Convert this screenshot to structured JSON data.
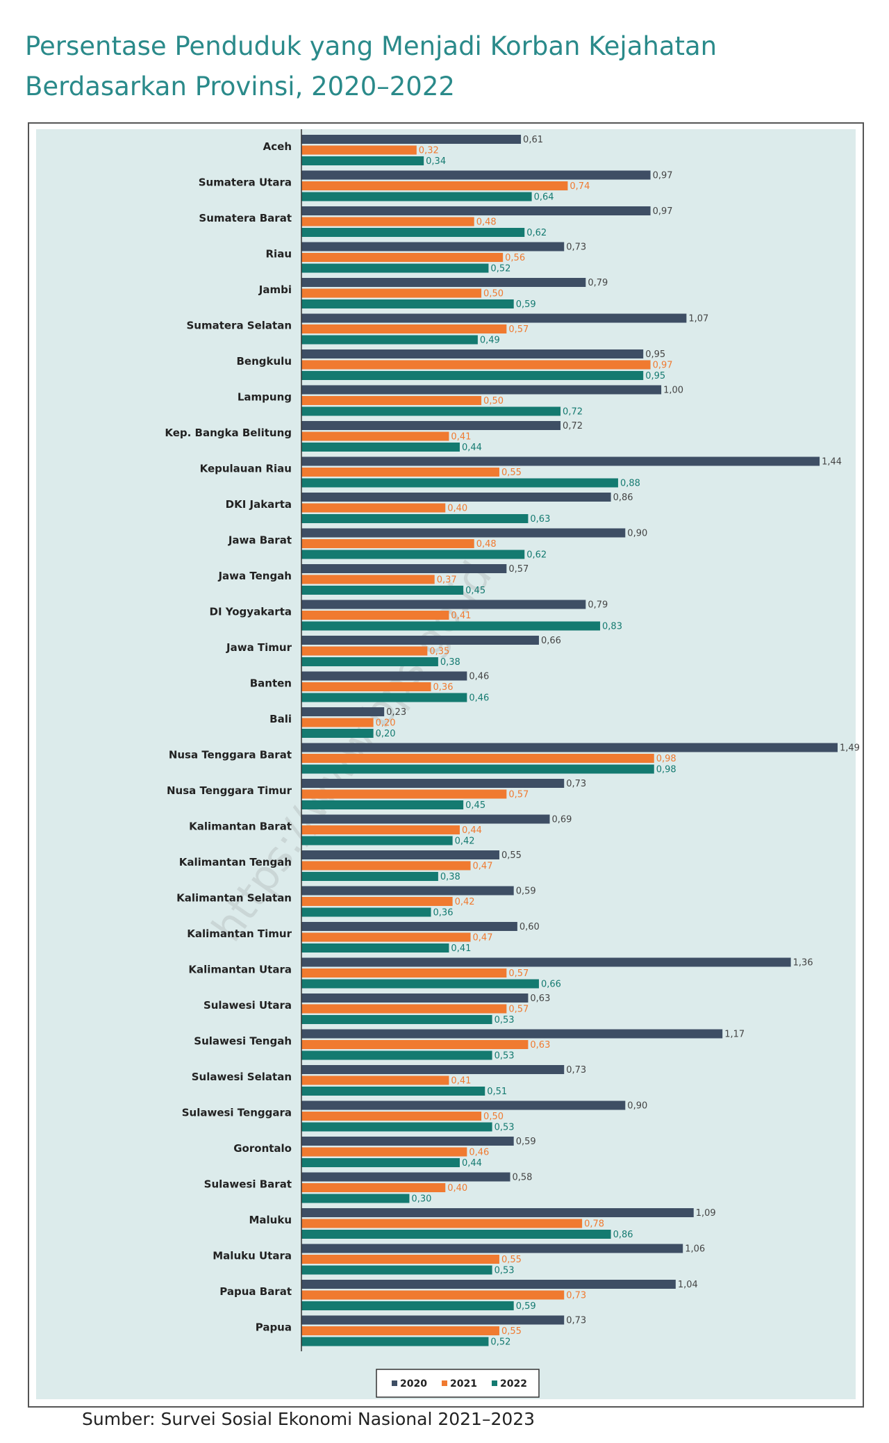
{
  "title": "Persentase Penduduk yang Menjadi Korban Kejahatan Berdasarkan Provinsi, 2020–2022",
  "source": "Sumber: Survei Sosial Ekonomi Nasional 2021–2023",
  "watermark": "https://www.bps.go.id",
  "colors": {
    "2020": "#3e4e64",
    "2021": "#f07a30",
    "2022": "#147a70",
    "plot_bg": "#dcebeb"
  },
  "chart_data": {
    "type": "bar",
    "orientation": "horizontal",
    "title": "Persentase Penduduk yang Menjadi Korban Kejahatan Berdasarkan Provinsi, 2020–2022",
    "xlabel": "",
    "ylabel": "",
    "xlim": [
      0,
      1.5
    ],
    "legend_position": "bottom",
    "categories": [
      "Aceh",
      "Sumatera Utara",
      "Sumatera Barat",
      "Riau",
      "Jambi",
      "Sumatera Selatan",
      "Bengkulu",
      "Lampung",
      "Kep. Bangka Belitung",
      "Kepulauan Riau",
      "DKI Jakarta",
      "Jawa Barat",
      "Jawa Tengah",
      "DI Yogyakarta",
      "Jawa Timur",
      "Banten",
      "Bali",
      "Nusa Tenggara Barat",
      "Nusa Tenggara Timur",
      "Kalimantan Barat",
      "Kalimantan Tengah",
      "Kalimantan Selatan",
      "Kalimantan Timur",
      "Kalimantan Utara",
      "Sulawesi Utara",
      "Sulawesi Tengah",
      "Sulawesi Selatan",
      "Sulawesi Tenggara",
      "Gorontalo",
      "Sulawesi Barat",
      "Maluku",
      "Maluku Utara",
      "Papua Barat",
      "Papua"
    ],
    "series": [
      {
        "name": "2020",
        "values": [
          0.61,
          0.97,
          0.97,
          0.73,
          0.79,
          1.07,
          0.95,
          1.0,
          0.72,
          1.44,
          0.86,
          0.9,
          0.57,
          0.79,
          0.66,
          0.46,
          0.23,
          1.49,
          0.73,
          0.69,
          0.55,
          0.59,
          0.6,
          1.36,
          0.63,
          1.17,
          0.73,
          0.9,
          0.59,
          0.58,
          1.09,
          1.06,
          1.04,
          0.73
        ]
      },
      {
        "name": "2021",
        "values": [
          0.32,
          0.74,
          0.48,
          0.56,
          0.5,
          0.57,
          0.97,
          0.5,
          0.41,
          0.55,
          0.4,
          0.48,
          0.37,
          0.41,
          0.35,
          0.36,
          0.2,
          0.98,
          0.57,
          0.44,
          0.47,
          0.42,
          0.47,
          0.57,
          0.57,
          0.63,
          0.41,
          0.5,
          0.46,
          0.4,
          0.78,
          0.55,
          0.73,
          0.55
        ]
      },
      {
        "name": "2022",
        "values": [
          0.34,
          0.64,
          0.62,
          0.52,
          0.59,
          0.49,
          0.95,
          0.72,
          0.44,
          0.88,
          0.63,
          0.62,
          0.45,
          0.83,
          0.38,
          0.46,
          0.2,
          0.98,
          0.45,
          0.42,
          0.38,
          0.36,
          0.41,
          0.66,
          0.53,
          0.53,
          0.51,
          0.53,
          0.44,
          0.3,
          0.86,
          0.53,
          0.59,
          0.52
        ]
      }
    ],
    "value_labels": [
      [
        "0,61",
        "0,97",
        "0,97",
        "0,73",
        "0,79",
        "1,07",
        "0,95",
        "1,00",
        "0,72",
        "1,44",
        "0,86",
        "0,90",
        "0,57",
        "0,79",
        "0,66",
        "0,46",
        "0,23",
        "1,49",
        "0,73",
        "0,69",
        "0,55",
        "0,59",
        "0,60",
        "1,36",
        "0,63",
        "1,17",
        "0,73",
        "0,90",
        "0,59",
        "0,58",
        "1,09",
        "1,06",
        "1,04",
        "0,73"
      ],
      [
        "0,32",
        "0,74",
        "0,48",
        "0,56",
        "0,50",
        "0,57",
        "0,97",
        "0,50",
        "0,41",
        "0,55",
        "0,40",
        "0,48",
        "0,37",
        "0,41",
        "0,35",
        "0,36",
        "0,20",
        "0,98",
        "0,57",
        "0,44",
        "0,47",
        "0,42",
        "0,47",
        "0,57",
        "0,57",
        "0,63",
        "0,41",
        "0,50",
        "0,46",
        "0,40",
        "0,78",
        "0,55",
        "0,73",
        "0,55"
      ],
      [
        "0,34",
        "0,64",
        "0,62",
        "0,52",
        "0,59",
        "0,49",
        "0,95",
        "0,72",
        "0,44",
        "0,88",
        "0,63",
        "0,62",
        "0,45",
        "0,83",
        "0,38",
        "0,46",
        "0,20",
        "0,98",
        "0,45",
        "0,42",
        "0,38",
        "0,36",
        "0,41",
        "0,66",
        "0,53",
        "0,53",
        "0,51",
        "0,53",
        "0,44",
        "0,30",
        "0,86",
        "0,53",
        "0,59",
        "0,52"
      ]
    ]
  }
}
